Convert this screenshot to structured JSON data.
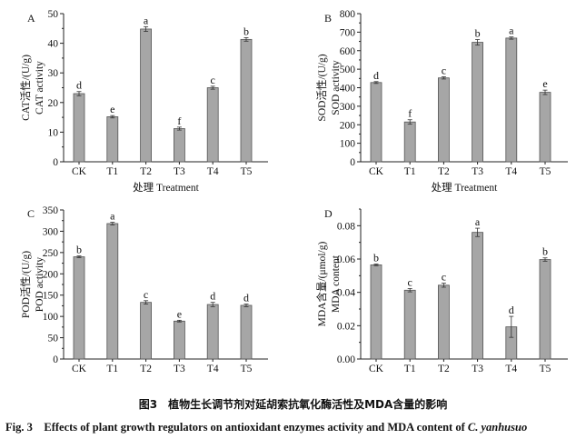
{
  "chart_data": [
    {
      "type": "bar",
      "panel": "A",
      "categories": [
        "CK",
        "T1",
        "T2",
        "T3",
        "T4",
        "T5"
      ],
      "values": [
        23.0,
        15.2,
        44.8,
        11.2,
        25.0,
        41.3
      ],
      "errors": [
        0.7,
        0.4,
        0.8,
        0.5,
        0.5,
        0.6
      ],
      "letters": [
        "d",
        "e",
        "a",
        "f",
        "c",
        "b"
      ],
      "ylabel_cn": "CAT活性/(U/g)",
      "ylabel_en": "CAT activity",
      "xlabel": "处理 Treatment",
      "ylim": [
        0,
        50
      ],
      "yticks": [
        "0",
        "10",
        "20",
        "30",
        "40",
        "50"
      ],
      "tick_values": [
        0,
        10,
        20,
        30,
        40,
        50
      ]
    },
    {
      "type": "bar",
      "panel": "B",
      "categories": [
        "CK",
        "T1",
        "T2",
        "T3",
        "T4",
        "T5"
      ],
      "values": [
        428,
        215,
        453,
        645,
        668,
        375
      ],
      "errors": [
        5,
        12,
        6,
        15,
        6,
        12
      ],
      "letters": [
        "d",
        "f",
        "c",
        "b",
        "a",
        "e"
      ],
      "ylabel_cn": "SOD活性/(U/g)",
      "ylabel_en": "SOD activity",
      "xlabel": "处理 Treatment",
      "ylim": [
        0,
        800
      ],
      "yticks": [
        "0",
        "100",
        "200",
        "300",
        "400",
        "500",
        "600",
        "700",
        "800"
      ],
      "tick_values": [
        0,
        100,
        200,
        300,
        400,
        500,
        600,
        700,
        800
      ]
    },
    {
      "type": "bar",
      "panel": "C",
      "categories": [
        "CK",
        "T1",
        "T2",
        "T3",
        "T4",
        "T5"
      ],
      "values": [
        240,
        318,
        133,
        89,
        128,
        126
      ],
      "errors": [
        2,
        3,
        4,
        2,
        5,
        3
      ],
      "letters": [
        "b",
        "a",
        "c",
        "e",
        "d",
        "d"
      ],
      "ylabel_cn": "POD活性/(U/g)",
      "ylabel_en": "POD activity",
      "xlabel": "",
      "ylim": [
        0,
        350
      ],
      "yticks": [
        "0",
        "50",
        "100",
        "150",
        "200",
        "250",
        "300",
        "350"
      ],
      "tick_values": [
        0,
        50,
        100,
        150,
        200,
        250,
        300,
        350
      ]
    },
    {
      "type": "bar",
      "panel": "D",
      "categories": [
        "CK",
        "T1",
        "T2",
        "T3",
        "T4",
        "T5"
      ],
      "values": [
        0.0565,
        0.0413,
        0.0443,
        0.076,
        0.0193,
        0.0597
      ],
      "errors": [
        0.0005,
        0.001,
        0.0012,
        0.0025,
        0.0063,
        0.001
      ],
      "letters": [
        "b",
        "c",
        "c",
        "a",
        "d",
        "b"
      ],
      "ylabel_cn": "MDA含量/(μmol/g)",
      "ylabel_en": "MDA content",
      "xlabel": "",
      "ylim": [
        0,
        0.09
      ],
      "yticks": [
        "0.00",
        "0.02",
        "0.04",
        "0.06",
        "0.08"
      ],
      "tick_values": [
        0,
        0.02,
        0.04,
        0.06,
        0.08
      ]
    }
  ],
  "caption": {
    "cn": "图3　植物生长调节剂对延胡索抗氧化酶活性及MDA含量的影响",
    "en_prefix": "Fig. 3　Effects of plant growth regulators on antioxidant enzymes activity and MDA content of ",
    "en_species": "C. yanhusuo"
  },
  "colors": {
    "bar": "#a6a6a6",
    "bar_edge": "#555555",
    "axis": "#222222"
  }
}
